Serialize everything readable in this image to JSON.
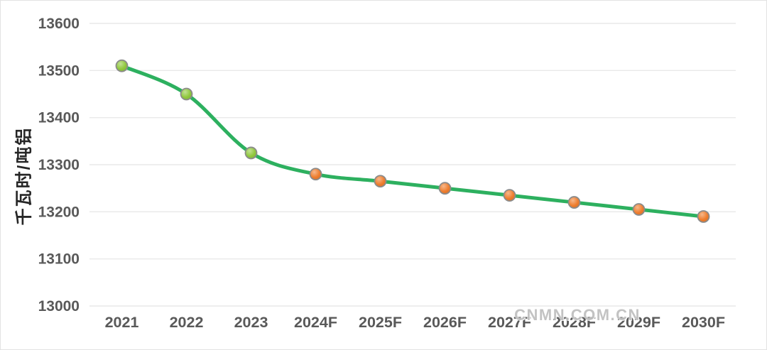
{
  "chart_data": {
    "type": "line",
    "title": "",
    "categories": [
      "2021",
      "2022",
      "2023",
      "2024F",
      "2025F",
      "2026F",
      "2027F",
      "2028F",
      "2029F",
      "2030F"
    ],
    "series": [
      {
        "values": [
          13510,
          13450,
          13325,
          13280,
          13265,
          13250,
          13235,
          13220,
          13205,
          13190
        ],
        "line_color": "#2db05f",
        "point_colors": [
          "#90c83d",
          "#90c83d",
          "#90c83d",
          "#ee7d2e",
          "#ee7d2e",
          "#ee7d2e",
          "#ee7d2e",
          "#ee7d2e",
          "#ee7d2e",
          "#ee7d2e"
        ]
      }
    ],
    "xlabel": "",
    "ylabel": "千瓦时/吨铝",
    "ylim": [
      13000,
      13600
    ],
    "yticks": [
      13000,
      13100,
      13200,
      13300,
      13400,
      13500,
      13600
    ],
    "grid": true,
    "legend_position": "none"
  },
  "watermark": {
    "text": "CNMN.COM.CN"
  },
  "colors": {
    "background": "#ffffff",
    "frame_border": "#e3e3e3",
    "gridline": "#e9e9e9",
    "tick_label": "#595959",
    "axis_title": "#262626",
    "marker_border": "#8b8b8b",
    "watermark": "#b2b2b2"
  }
}
